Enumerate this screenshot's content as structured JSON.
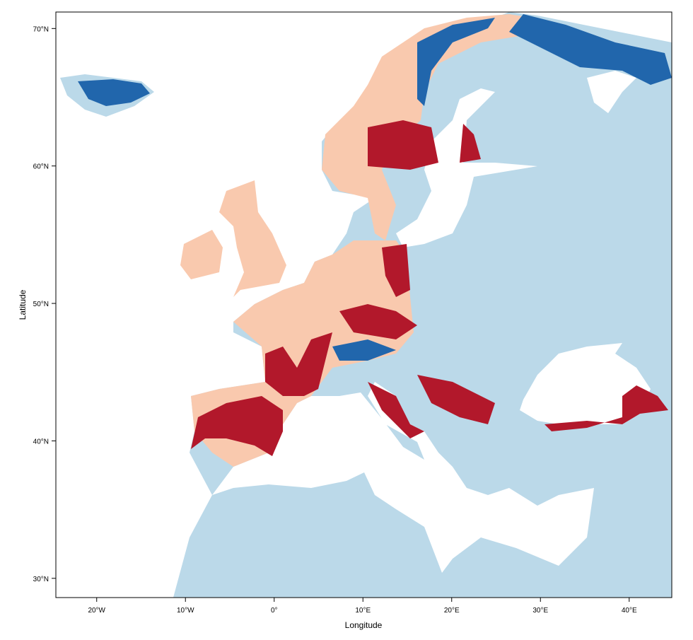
{
  "map": {
    "xlabel": "Longitude",
    "ylabel": "Latitude",
    "lon_range": [
      -24.6,
      44.8
    ],
    "lat_range": [
      28.6,
      71.2
    ],
    "x_ticks": [
      {
        "value": -20,
        "label": "20°W"
      },
      {
        "value": -10,
        "label": "10°W"
      },
      {
        "value": 0,
        "label": "0°"
      },
      {
        "value": 10,
        "label": "10°E"
      },
      {
        "value": 20,
        "label": "20°E"
      },
      {
        "value": 30,
        "label": "30°E"
      },
      {
        "value": 40,
        "label": "40°E"
      }
    ],
    "y_ticks": [
      {
        "value": 30,
        "label": "30°N"
      },
      {
        "value": 40,
        "label": "40°N"
      },
      {
        "value": 50,
        "label": "50°N"
      },
      {
        "value": 60,
        "label": "60°N"
      },
      {
        "value": 70,
        "label": "70°N"
      }
    ],
    "colors": {
      "sea": "#ffffff",
      "land": "#bbd9e9",
      "pale": "#f9c9ae",
      "red": "#b2182b",
      "blue": "#2166ac"
    }
  }
}
